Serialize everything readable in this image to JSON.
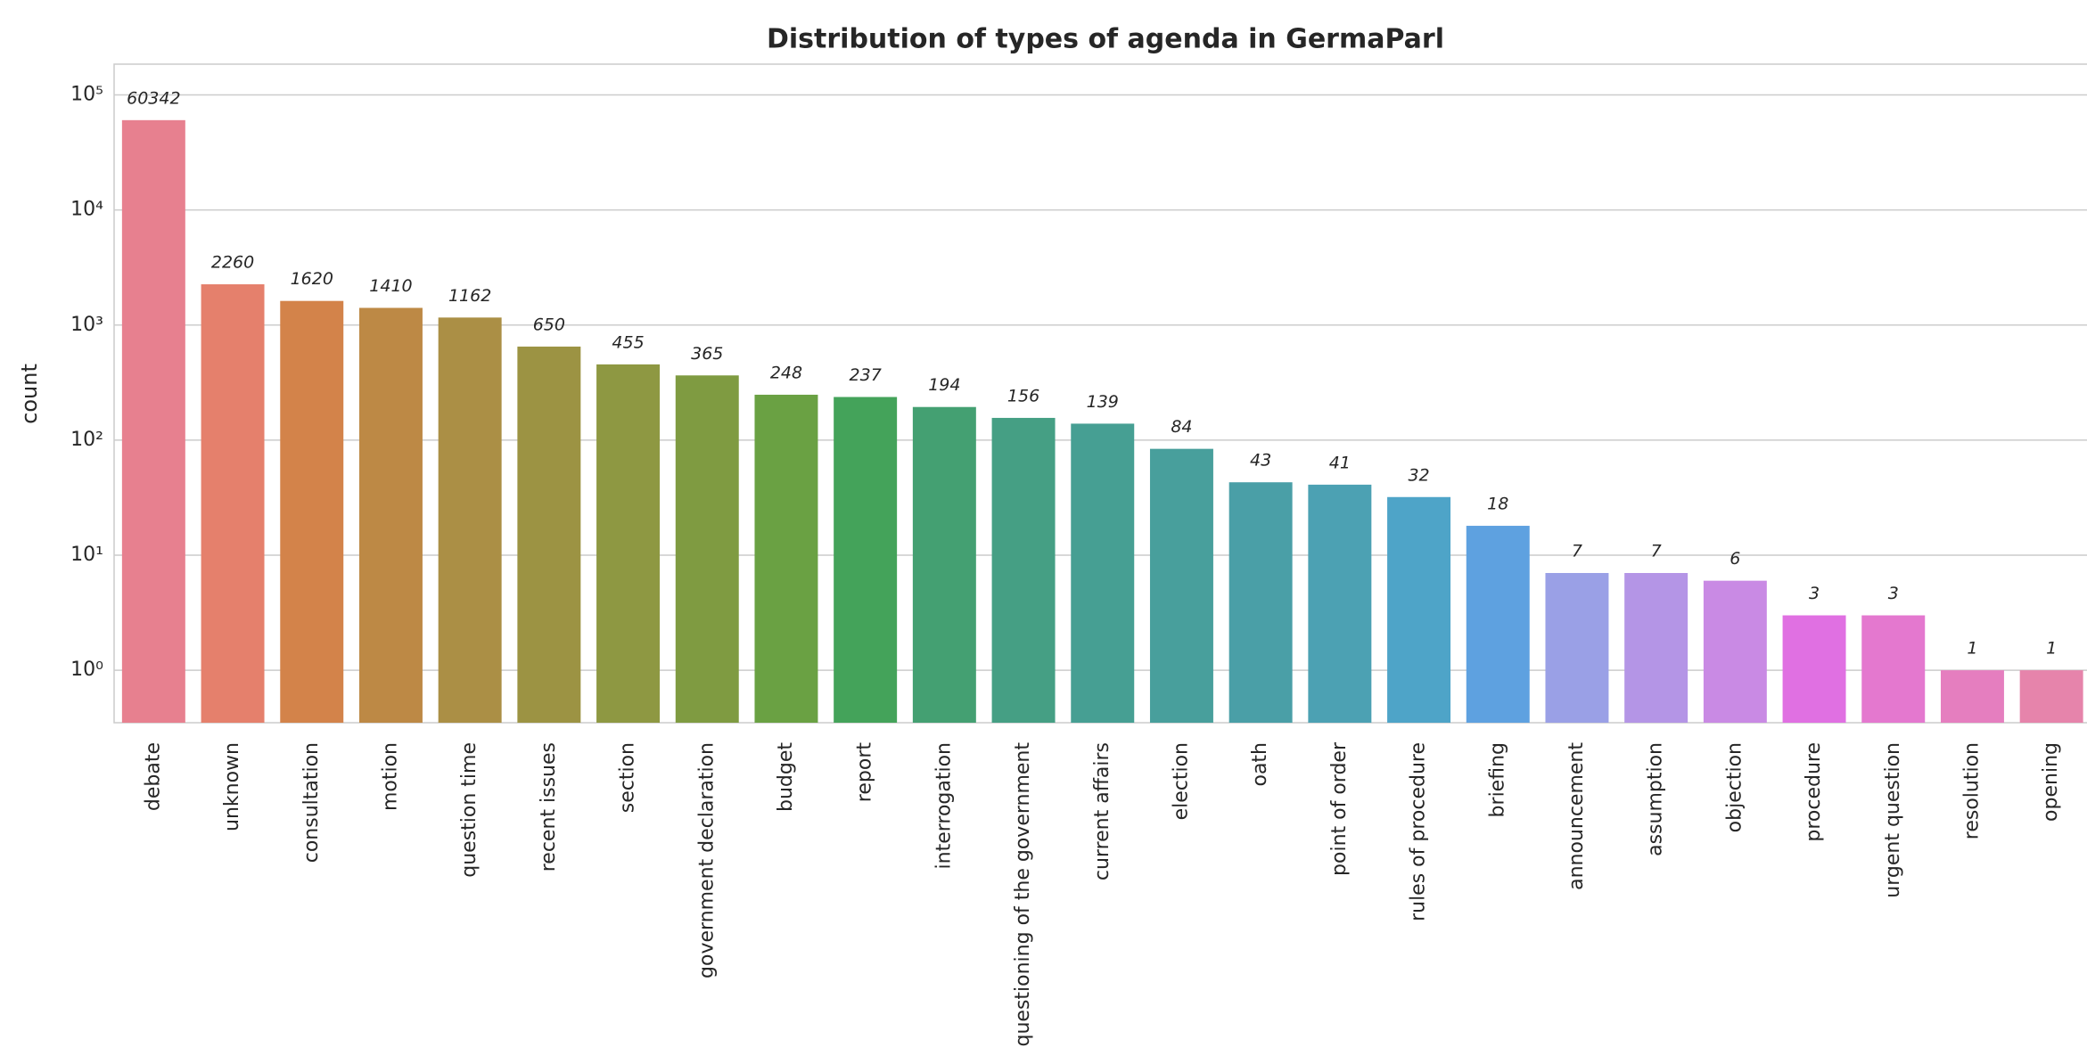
{
  "chart_data": {
    "type": "bar",
    "title": "Distribution of types of agenda in GermaParl",
    "ylabel": "count",
    "log_scale": true,
    "grid": true,
    "categories": [
      "debate",
      "unknown",
      "consultation",
      "motion",
      "question time",
      "recent issues",
      "section",
      "government declaration",
      "budget",
      "report",
      "interrogation",
      "questioning of the government",
      "current affairs",
      "election",
      "oath",
      "point of order",
      "rules of procedure",
      "briefing",
      "announcement",
      "assumption",
      "objection",
      "procedure",
      "urgent question",
      "resolution",
      "opening"
    ],
    "values": [
      60342,
      2260,
      1620,
      1410,
      1162,
      650,
      455,
      365,
      248,
      237,
      194,
      156,
      139,
      84,
      43,
      41,
      32,
      18,
      7,
      7,
      6,
      3,
      3,
      1,
      1
    ],
    "colors": [
      "#e7808f",
      "#e5806c",
      "#d3834a",
      "#bd8945",
      "#ab8f45",
      "#9c9343",
      "#8e9842",
      "#7f9b41",
      "#6aa143",
      "#44a35a",
      "#44a072",
      "#459f84",
      "#469f93",
      "#489f9c",
      "#4a9fa7",
      "#4ca1b3",
      "#4ea4c8",
      "#5ea1e0",
      "#9aa0e6",
      "#b495e6",
      "#c98ae4",
      "#e070e2",
      "#e478cf",
      "#e57ebf",
      "#e684ab"
    ],
    "ylim": [
      0.35,
      185000
    ],
    "yticks": [
      {
        "value": 1,
        "label": "10⁰"
      },
      {
        "value": 10,
        "label": "10¹"
      },
      {
        "value": 100,
        "label": "10²"
      },
      {
        "value": 1000,
        "label": "10³"
      },
      {
        "value": 10000,
        "label": "10⁴"
      },
      {
        "value": 100000,
        "label": "10⁵"
      }
    ]
  }
}
